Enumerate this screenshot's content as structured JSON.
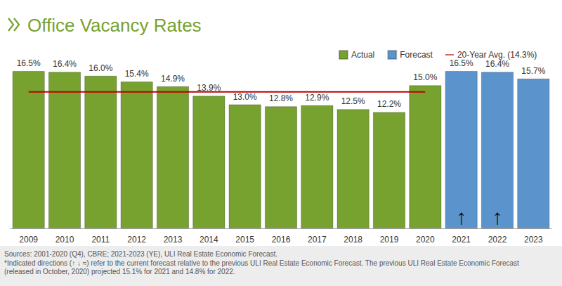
{
  "chart_data": {
    "type": "bar",
    "title": "Office Vacancy Rates",
    "categories": [
      "2009",
      "2010",
      "2011",
      "2012",
      "2013",
      "2014",
      "2015",
      "2016",
      "2017",
      "2018",
      "2019",
      "2020",
      "2021",
      "2022",
      "2023"
    ],
    "series": [
      {
        "name": "Actual",
        "type": "bar",
        "color": "#77a22f",
        "data_labels": true,
        "values": [
          16.5,
          16.4,
          16.0,
          15.4,
          14.9,
          13.9,
          13.0,
          12.8,
          12.9,
          12.5,
          12.2,
          15.0,
          null,
          null,
          null
        ],
        "value_labels": [
          "16.5%",
          "16.4%",
          "16.0%",
          "15.4%",
          "14.9%",
          "13.9%",
          "13.0%",
          "12.8%",
          "12.9%",
          "12.5%",
          "12.2%",
          "15.0%",
          null,
          null,
          null
        ]
      },
      {
        "name": "Forecast",
        "type": "bar",
        "color": "#5b94cc",
        "data_labels": true,
        "values": [
          null,
          null,
          null,
          null,
          null,
          null,
          null,
          null,
          null,
          null,
          null,
          null,
          16.5,
          16.4,
          15.7
        ],
        "value_labels": [
          null,
          null,
          null,
          null,
          null,
          null,
          null,
          null,
          null,
          null,
          null,
          null,
          "16.5%",
          "16.4%",
          "15.7%"
        ]
      },
      {
        "name": "20-Year Avg. (14.3%)",
        "type": "line",
        "color": "#c00000",
        "data_labels": false,
        "line_style": "solid",
        "marker": "none",
        "values": [
          14.3,
          14.3,
          14.3,
          14.3,
          14.3,
          14.3,
          14.3,
          14.3,
          14.3,
          14.3,
          14.3,
          14.3,
          null,
          null,
          null
        ]
      }
    ],
    "annotations": [
      {
        "category": "2021",
        "text": "↑"
      },
      {
        "category": "2022",
        "text": "↑"
      }
    ],
    "footnotes": [
      "Sources: 2001-2020 (Q4), CBRE; 2021-2023 (YE), ULI Real Estate Economic Forecast.",
      "*Indicated directions (↑ ↓ ≈) refer to the current forecast relative to the previous ULI Real Estate Economic Forecast. The previous ULI Real Estate Economic Forecast (released in October, 2020) projected 15.1% for 2021 and 14.8% for 2022."
    ],
    "ylim": [
      0,
      16.5
    ],
    "yticks": [
      0,
      16.5
    ],
    "tick_labels": "x",
    "grid": false,
    "legend": "top-right"
  }
}
